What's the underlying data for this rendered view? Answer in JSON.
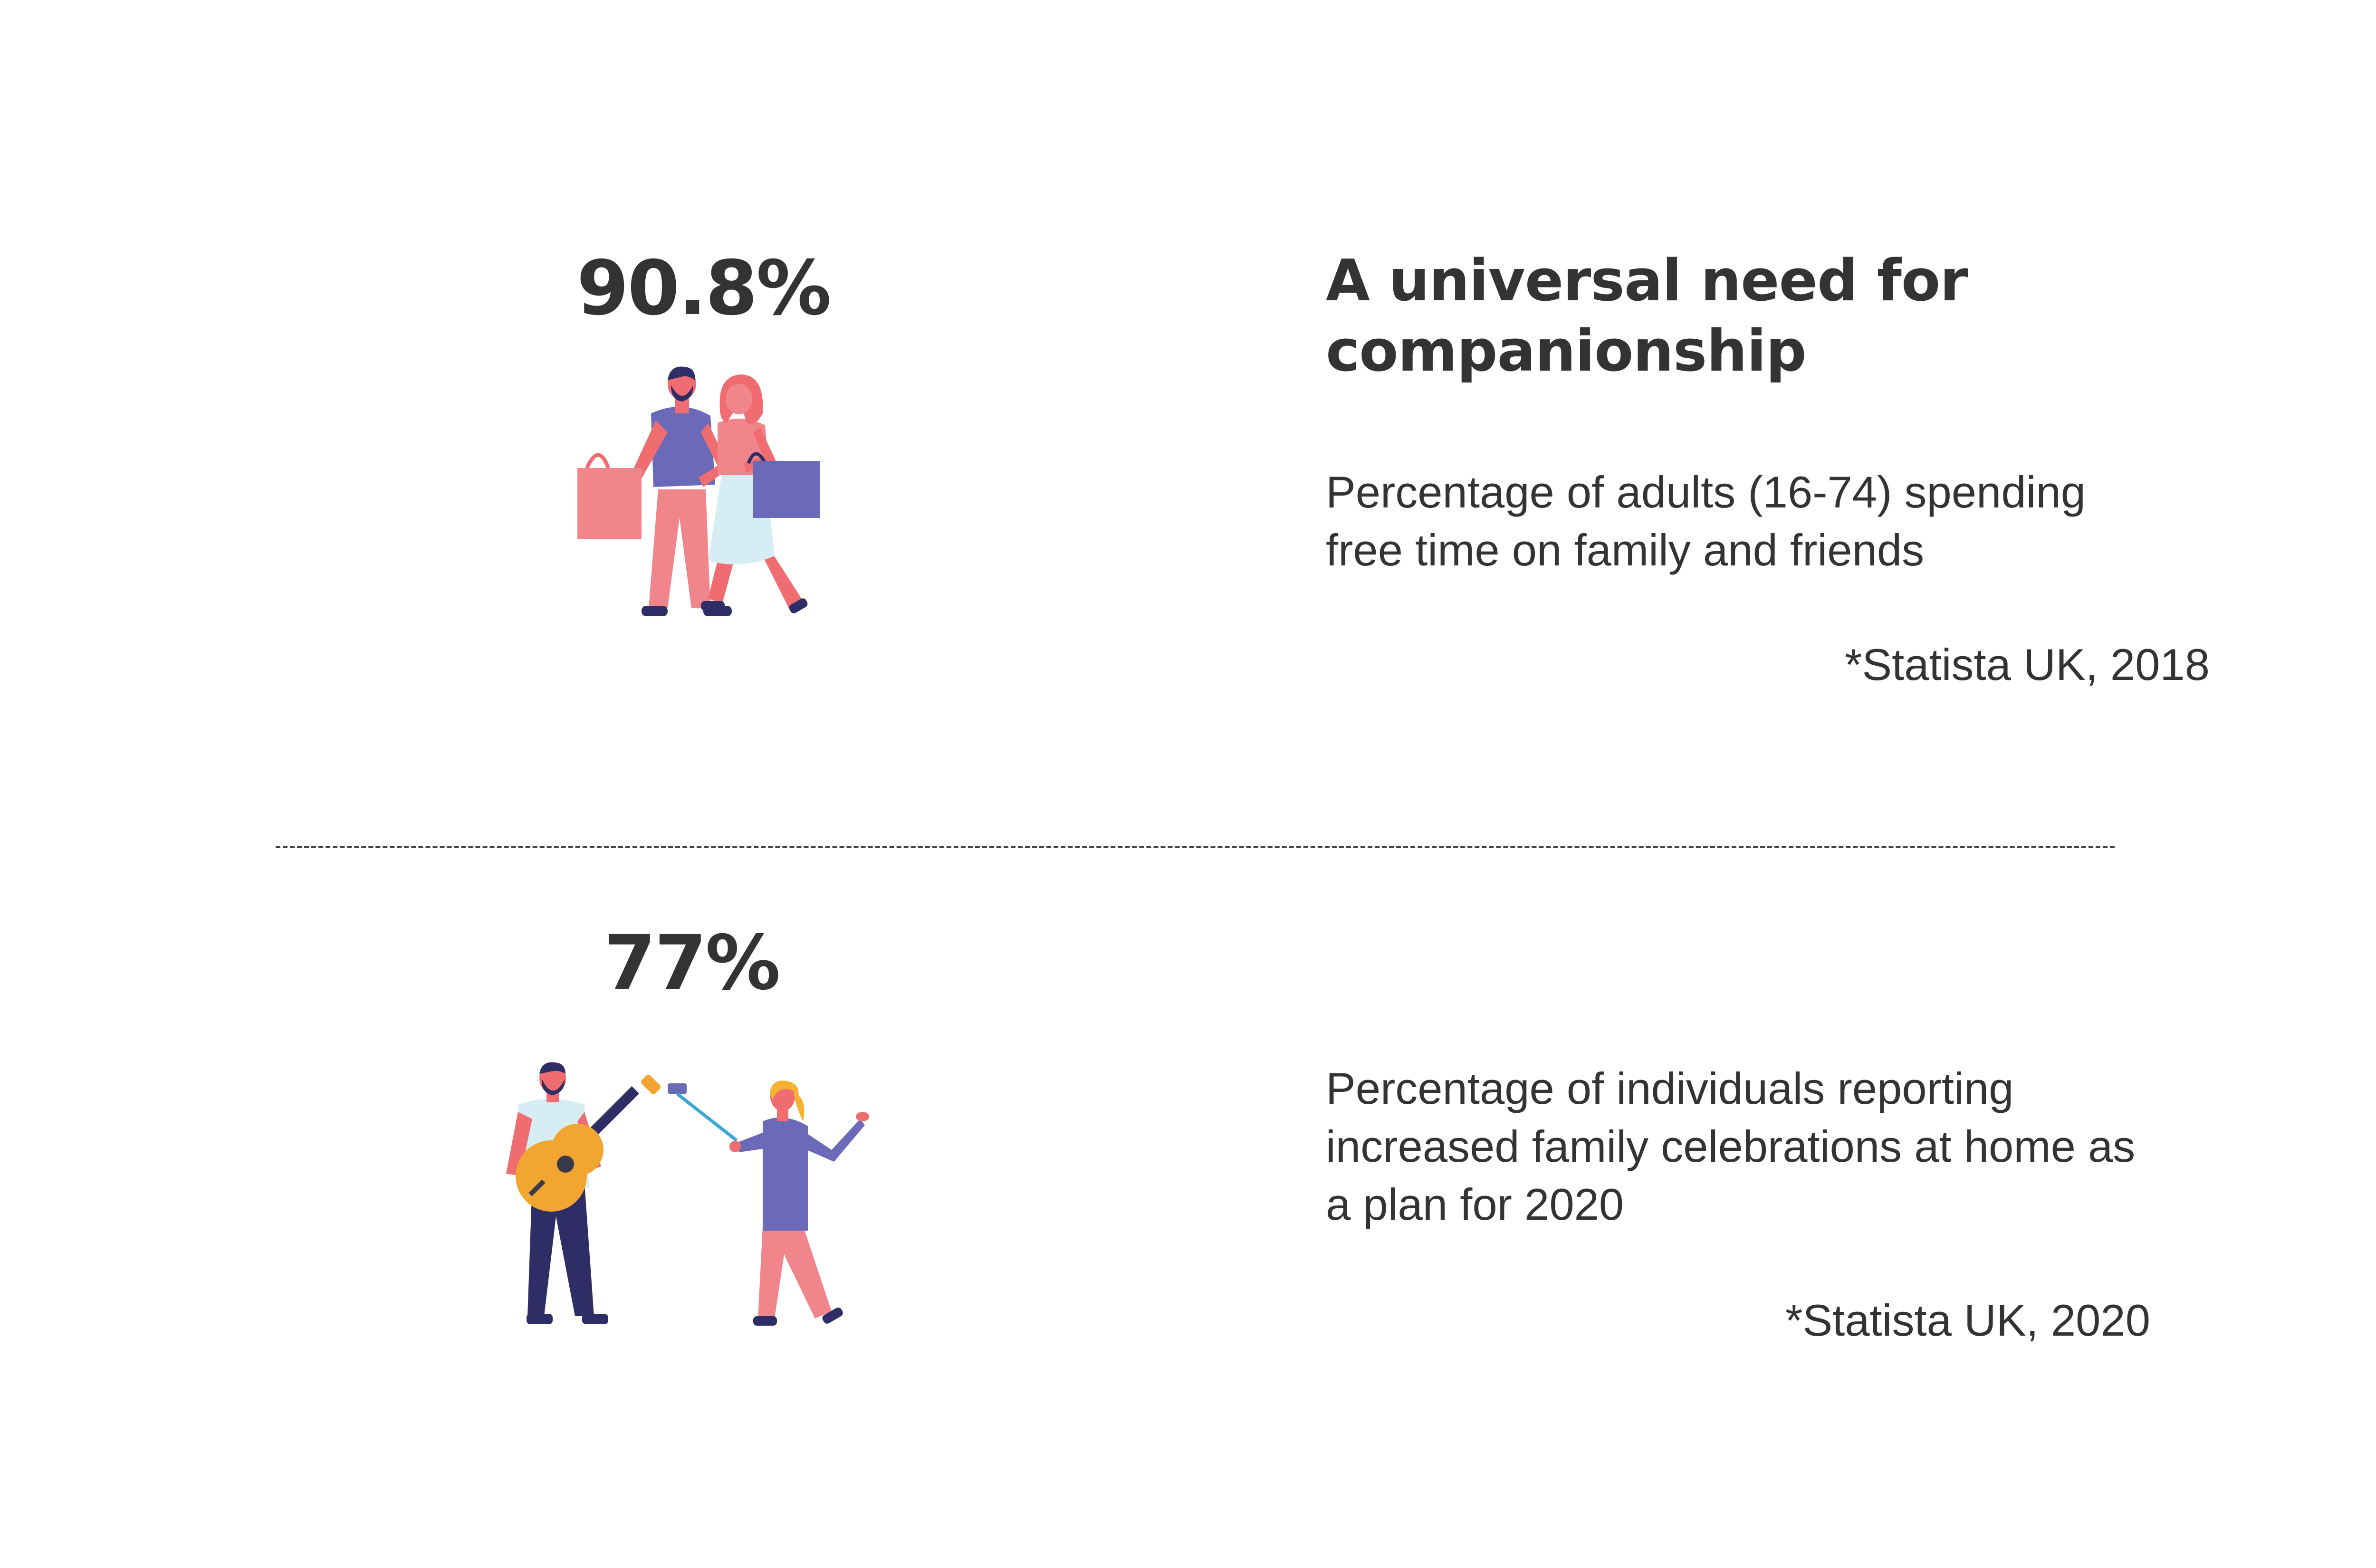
{
  "section1": {
    "stat": "90.8%",
    "headline": "A universal need for companionship",
    "description": "Percentage of adults (16-74)  spending free time on family and friends",
    "source": "*Statista UK, 2018",
    "illustration": "couple-shopping-illustration"
  },
  "section2": {
    "stat": "77%",
    "description": "Percentage of individuals reporting increased family celebrations at home as a plan for 2020",
    "source": "*Statista UK, 2020",
    "illustration": "guitar-selfie-illustration"
  },
  "colors": {
    "text": "#333333",
    "coral": "#EF6C70",
    "pink": "#F0868C",
    "purple": "#6A6AB8",
    "navy": "#2E2D66",
    "lightblue": "#D6EEF3",
    "orange": "#F2A531",
    "selfiestick": "#3DA8D8",
    "hair_yellow": "#F4B230",
    "dark": "#3A3A4A"
  }
}
